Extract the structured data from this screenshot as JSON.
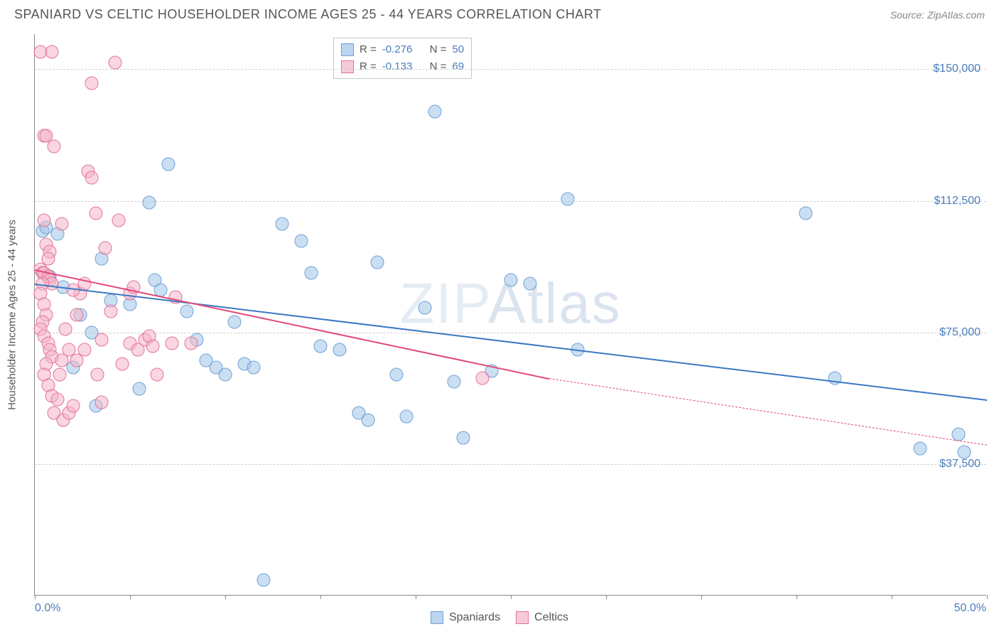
{
  "title": "SPANIARD VS CELTIC HOUSEHOLDER INCOME AGES 25 - 44 YEARS CORRELATION CHART",
  "source": "Source: ZipAtlas.com",
  "watermark_a": "ZIP",
  "watermark_b": "Atlas",
  "ylabel": "Householder Income Ages 25 - 44 years",
  "chart": {
    "type": "scatter",
    "xlim": [
      0,
      50
    ],
    "ylim": [
      0,
      160000
    ],
    "xtick_positions": [
      0,
      5,
      10,
      15,
      20,
      25,
      30,
      35,
      40,
      45,
      50
    ],
    "xtick_labels": {
      "0": "0.0%",
      "50": "50.0%"
    },
    "ytick_positions": [
      37500,
      75000,
      112500,
      150000
    ],
    "ytick_labels": [
      "$37,500",
      "$75,000",
      "$112,500",
      "$150,000"
    ],
    "grid_color": "#d0d0d0",
    "axis_color": "#888888",
    "background_color": "#ffffff",
    "marker_size": 19,
    "series": [
      {
        "name": "Spaniards",
        "color_fill": "rgba(160,197,232,0.55)",
        "color_border": "#6fa0d6",
        "R": "-0.276",
        "N": "50",
        "trend": {
          "x1": 0,
          "y1": 89000,
          "x2": 50,
          "y2": 56000,
          "color": "#3b78c4",
          "width": 2
        },
        "points": [
          [
            0.4,
            104000
          ],
          [
            0.6,
            105000
          ],
          [
            1.2,
            103000
          ],
          [
            0.8,
            91000
          ],
          [
            1.5,
            88000
          ],
          [
            2.0,
            65000
          ],
          [
            2.4,
            80000
          ],
          [
            3.0,
            75000
          ],
          [
            3.5,
            96000
          ],
          [
            3.2,
            54000
          ],
          [
            4.0,
            84000
          ],
          [
            5.0,
            83000
          ],
          [
            5.5,
            59000
          ],
          [
            6.0,
            112000
          ],
          [
            6.3,
            90000
          ],
          [
            6.6,
            87000
          ],
          [
            7.0,
            123000
          ],
          [
            8.0,
            81000
          ],
          [
            8.5,
            73000
          ],
          [
            9.0,
            67000
          ],
          [
            9.5,
            65000
          ],
          [
            10.0,
            63000
          ],
          [
            10.5,
            78000
          ],
          [
            11.0,
            66000
          ],
          [
            11.5,
            65000
          ],
          [
            12.0,
            4500
          ],
          [
            13.0,
            106000
          ],
          [
            14.0,
            101000
          ],
          [
            14.5,
            92000
          ],
          [
            15.0,
            71000
          ],
          [
            16.0,
            70000
          ],
          [
            17.0,
            52000
          ],
          [
            17.5,
            50000
          ],
          [
            18.0,
            95000
          ],
          [
            19.0,
            63000
          ],
          [
            19.5,
            51000
          ],
          [
            20.5,
            82000
          ],
          [
            21.0,
            138000
          ],
          [
            22.0,
            61000
          ],
          [
            22.5,
            45000
          ],
          [
            24.0,
            64000
          ],
          [
            25.0,
            90000
          ],
          [
            26.0,
            89000
          ],
          [
            28.0,
            113000
          ],
          [
            28.5,
            70000
          ],
          [
            40.5,
            109000
          ],
          [
            42.0,
            62000
          ],
          [
            46.5,
            42000
          ],
          [
            48.5,
            46000
          ],
          [
            48.8,
            41000
          ]
        ]
      },
      {
        "name": "Celtics",
        "color_fill": "rgba(244,180,200,0.55)",
        "color_border": "#e27498",
        "R": "-0.133",
        "N": "69",
        "trend": {
          "x1": 0,
          "y1": 93000,
          "x2": 27,
          "y2": 62000,
          "color": "#e04a7a",
          "width": 2,
          "dash_to_x": 50,
          "dash_to_y": 43000
        },
        "points": [
          [
            0.3,
            155000
          ],
          [
            0.9,
            155000
          ],
          [
            0.5,
            131000
          ],
          [
            0.6,
            131000
          ],
          [
            1.0,
            128000
          ],
          [
            1.4,
            106000
          ],
          [
            0.5,
            107000
          ],
          [
            0.6,
            100000
          ],
          [
            0.8,
            98000
          ],
          [
            0.3,
            93000
          ],
          [
            0.4,
            92000
          ],
          [
            0.5,
            92000
          ],
          [
            0.7,
            91000
          ],
          [
            0.8,
            90000
          ],
          [
            0.9,
            89000
          ],
          [
            0.7,
            96000
          ],
          [
            0.4,
            89000
          ],
          [
            0.3,
            86000
          ],
          [
            0.5,
            83000
          ],
          [
            0.6,
            80000
          ],
          [
            0.4,
            78000
          ],
          [
            0.3,
            76000
          ],
          [
            0.5,
            74000
          ],
          [
            0.7,
            72000
          ],
          [
            0.8,
            70000
          ],
          [
            0.9,
            68000
          ],
          [
            0.6,
            66000
          ],
          [
            0.5,
            63000
          ],
          [
            0.7,
            60000
          ],
          [
            0.9,
            57000
          ],
          [
            1.2,
            56000
          ],
          [
            1.4,
            67000
          ],
          [
            1.6,
            76000
          ],
          [
            1.8,
            70000
          ],
          [
            1.3,
            63000
          ],
          [
            1.0,
            52000
          ],
          [
            1.5,
            50000
          ],
          [
            1.8,
            52000
          ],
          [
            2.0,
            54000
          ],
          [
            2.2,
            80000
          ],
          [
            2.4,
            86000
          ],
          [
            2.6,
            70000
          ],
          [
            2.6,
            89000
          ],
          [
            2.8,
            121000
          ],
          [
            3.0,
            146000
          ],
          [
            3.0,
            119000
          ],
          [
            3.2,
            109000
          ],
          [
            2.2,
            67000
          ],
          [
            2.0,
            87000
          ],
          [
            3.3,
            63000
          ],
          [
            3.5,
            55000
          ],
          [
            3.5,
            73000
          ],
          [
            3.7,
            99000
          ],
          [
            4.0,
            81000
          ],
          [
            4.2,
            152000
          ],
          [
            4.4,
            107000
          ],
          [
            4.6,
            66000
          ],
          [
            5.0,
            86000
          ],
          [
            5.0,
            72000
          ],
          [
            5.2,
            88000
          ],
          [
            5.4,
            70000
          ],
          [
            5.8,
            73000
          ],
          [
            6.0,
            74000
          ],
          [
            6.2,
            71000
          ],
          [
            6.4,
            63000
          ],
          [
            7.2,
            72000
          ],
          [
            7.4,
            85000
          ],
          [
            8.2,
            72000
          ],
          [
            23.5,
            62000
          ]
        ]
      }
    ]
  },
  "legend_top_labels": {
    "R": "R =",
    "N": "N ="
  },
  "legend_bottom": [
    "Spaniards",
    "Celtics"
  ]
}
